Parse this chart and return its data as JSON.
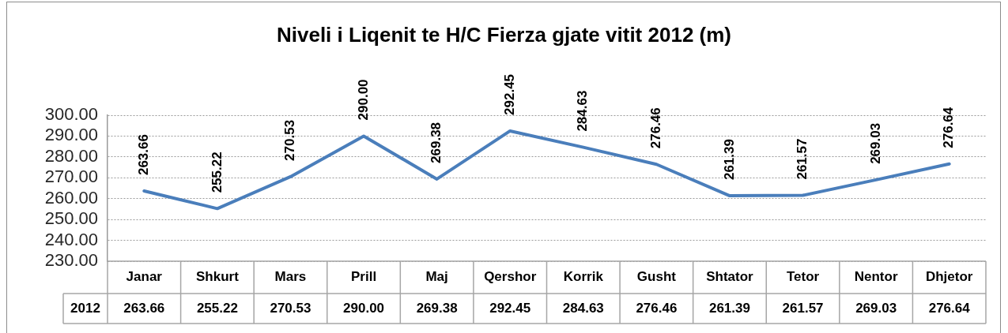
{
  "chart_data": {
    "type": "line",
    "title": "Niveli i Liqenit te H/C Fierza gjate vitit 2012 (m)",
    "categories": [
      "Janar",
      "Shkurt",
      "Mars",
      "Prill",
      "Maj",
      "Qershor",
      "Korrik",
      "Gusht",
      "Shtator",
      "Tetor",
      "Nentor",
      "Dhjetor"
    ],
    "series": [
      {
        "name": "2012",
        "color": "#4a7ebb",
        "values": [
          263.66,
          255.22,
          270.53,
          290.0,
          269.38,
          292.45,
          284.63,
          276.46,
          261.39,
          261.57,
          269.03,
          276.64
        ],
        "value_labels": [
          "263.66",
          "255.22",
          "270.53",
          "290.00",
          "269.38",
          "292.45",
          "284.63",
          "276.46",
          "261.39",
          "261.57",
          "269.03",
          "276.64"
        ]
      }
    ],
    "ylim": [
      230,
      300
    ],
    "yticks": [
      {
        "value": 230,
        "label": "230.00"
      },
      {
        "value": 240,
        "label": "240.00"
      },
      {
        "value": 250,
        "label": "250.00"
      },
      {
        "value": 260,
        "label": "260.00"
      },
      {
        "value": 270,
        "label": "270.00"
      },
      {
        "value": 280,
        "label": "280.00"
      },
      {
        "value": 290,
        "label": "290.00"
      },
      {
        "value": 300,
        "label": "300.00"
      }
    ],
    "grid": "y",
    "marker": "none"
  }
}
